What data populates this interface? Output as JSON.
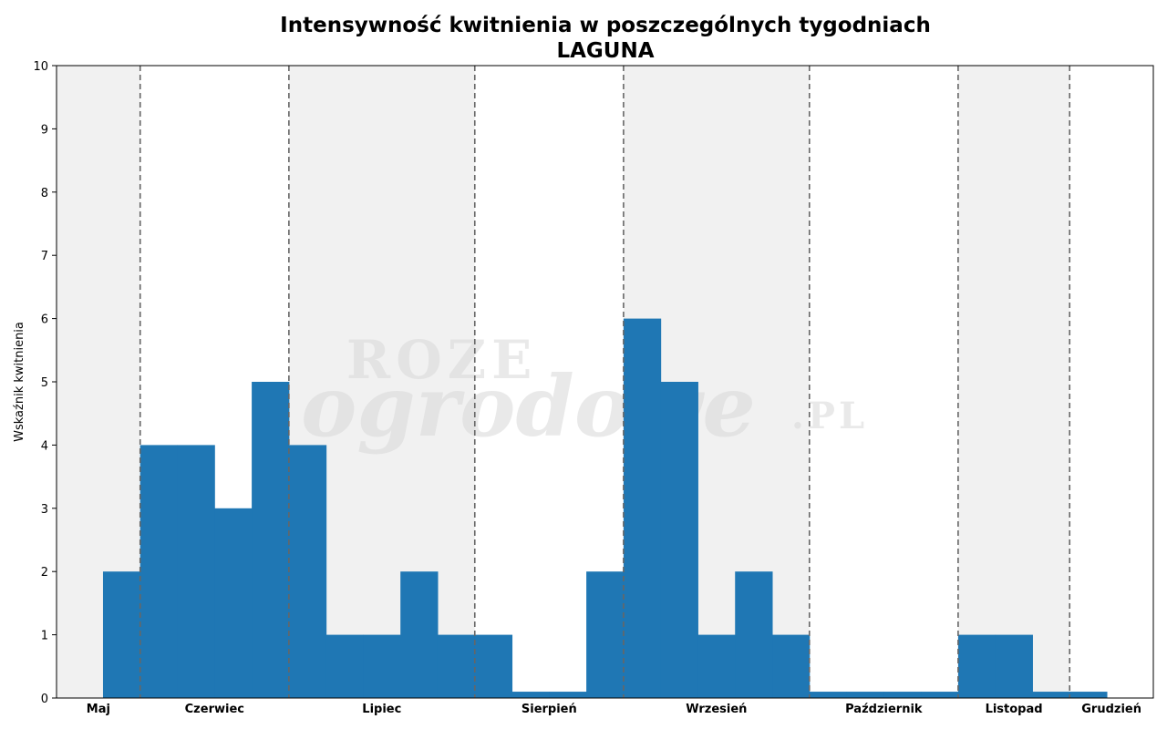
{
  "chart_data": {
    "type": "bar",
    "title": "Intensywność kwitnienia w poszczególnych tygodniach",
    "subtitle": "LAGUNA",
    "xlabel": "",
    "ylabel": "Wskaźnik kwitnienia",
    "ylim": [
      0,
      10
    ],
    "yticks": [
      "0",
      "1",
      "2",
      "3",
      "4",
      "5",
      "6",
      "7",
      "8",
      "9",
      "10"
    ],
    "grid": false,
    "months": [
      {
        "label": "Maj",
        "start_week": 0,
        "end_week": 2.25,
        "shaded": true
      },
      {
        "label": "Czerwiec",
        "start_week": 2.25,
        "end_week": 6.25,
        "shaded": false
      },
      {
        "label": "Lipiec",
        "start_week": 6.25,
        "end_week": 11.25,
        "shaded": true
      },
      {
        "label": "Sierpień",
        "start_week": 11.25,
        "end_week": 15.25,
        "shaded": false
      },
      {
        "label": "Wrzesień",
        "start_week": 15.25,
        "end_week": 20.25,
        "shaded": true
      },
      {
        "label": "Październik",
        "start_week": 20.25,
        "end_week": 24.25,
        "shaded": false
      },
      {
        "label": "Listopad",
        "start_week": 24.25,
        "end_week": 27.25,
        "shaded": true
      },
      {
        "label": "Grudzień",
        "start_week": 27.25,
        "end_week": 29.5,
        "shaded": false
      }
    ],
    "bars": [
      {
        "week": 1.25,
        "value": 2
      },
      {
        "week": 2.25,
        "value": 4
      },
      {
        "week": 3.25,
        "value": 4
      },
      {
        "week": 4.25,
        "value": 3
      },
      {
        "week": 5.25,
        "value": 5
      },
      {
        "week": 6.25,
        "value": 4
      },
      {
        "week": 7.25,
        "value": 1
      },
      {
        "week": 8.25,
        "value": 1
      },
      {
        "week": 9.25,
        "value": 2
      },
      {
        "week": 10.25,
        "value": 1
      },
      {
        "week": 11.25,
        "value": 1
      },
      {
        "week": 12.25,
        "value": 0.1
      },
      {
        "week": 13.25,
        "value": 0.1
      },
      {
        "week": 14.25,
        "value": 2
      },
      {
        "week": 15.25,
        "value": 6
      },
      {
        "week": 16.25,
        "value": 5
      },
      {
        "week": 17.25,
        "value": 1
      },
      {
        "week": 18.25,
        "value": 2
      },
      {
        "week": 19.25,
        "value": 1
      },
      {
        "week": 20.25,
        "value": 0.1
      },
      {
        "week": 21.25,
        "value": 0.1
      },
      {
        "week": 22.25,
        "value": 0.1
      },
      {
        "week": 23.25,
        "value": 0.1
      },
      {
        "week": 24.25,
        "value": 1
      },
      {
        "week": 25.25,
        "value": 1
      },
      {
        "week": 26.25,
        "value": 0.1
      },
      {
        "week": 27.25,
        "value": 0.1
      }
    ],
    "colors": {
      "bar": "#1f77b4",
      "shade": "#f1f1f1",
      "divider": "#666666"
    },
    "watermark": [
      "ROZE",
      "ogrodowe",
      ".PL"
    ]
  }
}
